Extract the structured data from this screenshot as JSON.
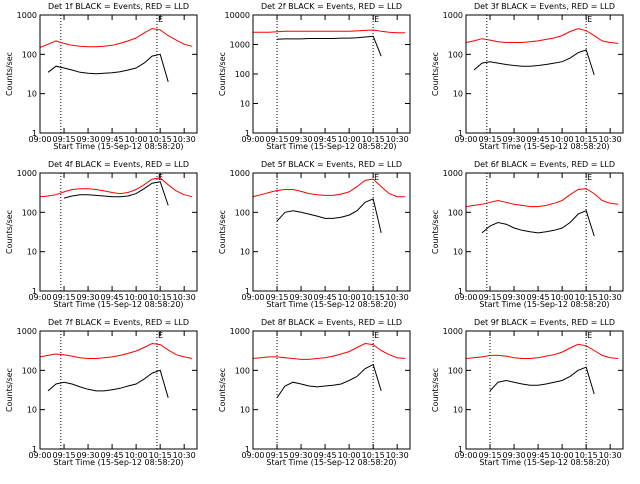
{
  "chart_data": [
    {
      "type": "line",
      "title": "Det 1f BLACK = Events, RED = LLD",
      "xlabel": "Start Time (15-Sep-12 08:58:20)",
      "ylabel": "Counts/sec",
      "log_y": true,
      "x": [
        "09:00",
        "09:05",
        "09:10",
        "09:15",
        "09:20",
        "09:25",
        "09:30",
        "09:35",
        "09:40",
        "09:45",
        "09:50",
        "09:55",
        "10:00",
        "10:05",
        "10:10",
        "10:15",
        "10:20",
        "10:25",
        "10:30",
        "10:35"
      ],
      "xlim": [
        "09:00",
        "10:38"
      ],
      "xticks": [
        "09:00",
        "09:15",
        "09:30",
        "09:45",
        "10:00",
        "10:15",
        "10:30"
      ],
      "ylim": [
        1,
        1000
      ],
      "yticks": [
        1,
        10,
        100,
        1000
      ],
      "events": [
        {
          "x": "09:13"
        },
        {
          "x": "10:13",
          "label": "E"
        }
      ],
      "series": [
        {
          "color": "#000000",
          "values": [
            null,
            35,
            50,
            45,
            40,
            35,
            33,
            32,
            33,
            34,
            36,
            40,
            45,
            60,
            90,
            100,
            20,
            null,
            null,
            null
          ]
        },
        {
          "color": "#ff0000",
          "values": [
            150,
            180,
            220,
            190,
            170,
            160,
            155,
            155,
            160,
            170,
            190,
            220,
            260,
            350,
            450,
            420,
            300,
            230,
            180,
            160
          ]
        }
      ]
    },
    {
      "type": "line",
      "title": "Det 2f BLACK = Events, RED = LLD",
      "xlabel": "Start Time (15-Sep-12 08:58:20)",
      "ylabel": "Counts/sec",
      "log_y": true,
      "x": [
        "09:00",
        "09:05",
        "09:10",
        "09:15",
        "09:20",
        "09:25",
        "09:30",
        "09:35",
        "09:40",
        "09:45",
        "09:50",
        "09:55",
        "10:00",
        "10:05",
        "10:10",
        "10:15",
        "10:20",
        "10:25",
        "10:30",
        "10:35"
      ],
      "xlim": [
        "09:00",
        "10:38"
      ],
      "xticks": [
        "09:00",
        "09:15",
        "09:30",
        "09:45",
        "10:00",
        "10:15",
        "10:30"
      ],
      "ylim": [
        1,
        10000
      ],
      "yticks": [
        1,
        10,
        100,
        1000,
        10000
      ],
      "events": [
        {
          "x": "09:15"
        },
        {
          "x": "10:15",
          "label": "E"
        }
      ],
      "series": [
        {
          "color": "#000000",
          "values": [
            null,
            null,
            null,
            1500,
            1550,
            1550,
            1550,
            1600,
            1600,
            1600,
            1600,
            1650,
            1650,
            1700,
            1800,
            1900,
            400,
            null,
            null,
            null
          ]
        },
        {
          "color": "#ff0000",
          "values": [
            2600,
            2600,
            2600,
            2700,
            2800,
            2800,
            2800,
            2800,
            2800,
            2800,
            2800,
            2800,
            2800,
            2900,
            3000,
            3100,
            2800,
            2600,
            2500,
            2500
          ]
        }
      ]
    },
    {
      "type": "line",
      "title": "Det 3f BLACK = Events, RED = LLD",
      "xlabel": "Start Time (15-Sep-12 08:58:20)",
      "ylabel": "Counts/sec",
      "log_y": true,
      "x": [
        "09:00",
        "09:05",
        "09:10",
        "09:15",
        "09:20",
        "09:25",
        "09:30",
        "09:35",
        "09:40",
        "09:45",
        "09:50",
        "09:55",
        "10:00",
        "10:05",
        "10:10",
        "10:15",
        "10:20",
        "10:25",
        "10:30",
        "10:35"
      ],
      "xlim": [
        "09:00",
        "10:38"
      ],
      "xticks": [
        "09:00",
        "09:15",
        "09:30",
        "09:45",
        "10:00",
        "10:15",
        "10:30"
      ],
      "ylim": [
        1,
        1000
      ],
      "yticks": [
        1,
        10,
        100,
        1000
      ],
      "events": [
        {
          "x": "09:13"
        },
        {
          "x": "10:15",
          "label": "E"
        }
      ],
      "series": [
        {
          "color": "#000000",
          "values": [
            null,
            40,
            60,
            65,
            60,
            55,
            52,
            50,
            50,
            52,
            55,
            60,
            65,
            80,
            110,
            130,
            30,
            null,
            null,
            null
          ]
        },
        {
          "color": "#ff0000",
          "values": [
            200,
            220,
            250,
            230,
            210,
            200,
            200,
            200,
            210,
            220,
            240,
            260,
            300,
            380,
            450,
            400,
            300,
            220,
            200,
            190
          ]
        }
      ]
    },
    {
      "type": "line",
      "title": "Det 4f BLACK = Events, RED = LLD",
      "xlabel": "Start Time (15-Sep-12 08:58:20)",
      "ylabel": "Counts/sec",
      "log_y": true,
      "x": [
        "09:00",
        "09:05",
        "09:10",
        "09:15",
        "09:20",
        "09:25",
        "09:30",
        "09:35",
        "09:40",
        "09:45",
        "09:50",
        "09:55",
        "10:00",
        "10:05",
        "10:10",
        "10:15",
        "10:20",
        "10:25",
        "10:30",
        "10:35"
      ],
      "xlim": [
        "09:00",
        "10:38"
      ],
      "xticks": [
        "09:00",
        "09:15",
        "09:30",
        "09:45",
        "10:00",
        "10:15",
        "10:30"
      ],
      "ylim": [
        1,
        1000
      ],
      "yticks": [
        1,
        10,
        100,
        1000
      ],
      "events": [
        {
          "x": "09:13"
        },
        {
          "x": "10:13",
          "label": "E"
        }
      ],
      "series": [
        {
          "color": "#000000",
          "values": [
            null,
            null,
            null,
            230,
            260,
            280,
            280,
            270,
            260,
            250,
            250,
            260,
            300,
            400,
            550,
            600,
            150,
            null,
            null,
            null
          ]
        },
        {
          "color": "#ff0000",
          "values": [
            250,
            260,
            280,
            330,
            380,
            400,
            400,
            380,
            350,
            320,
            300,
            320,
            380,
            500,
            700,
            750,
            500,
            350,
            280,
            250
          ]
        }
      ]
    },
    {
      "type": "line",
      "title": "Det 5f BLACK = Events, RED = LLD",
      "xlabel": "Start Time (15-Sep-12 08:58:20)",
      "ylabel": "Counts/sec",
      "log_y": true,
      "x": [
        "09:00",
        "09:05",
        "09:10",
        "09:15",
        "09:20",
        "09:25",
        "09:30",
        "09:35",
        "09:40",
        "09:45",
        "09:50",
        "09:55",
        "10:00",
        "10:05",
        "10:10",
        "10:15",
        "10:20",
        "10:25",
        "10:30",
        "10:35"
      ],
      "xlim": [
        "09:00",
        "10:38"
      ],
      "xticks": [
        "09:00",
        "09:15",
        "09:30",
        "09:45",
        "10:00",
        "10:15",
        "10:30"
      ],
      "ylim": [
        1,
        1000
      ],
      "yticks": [
        1,
        10,
        100,
        1000
      ],
      "events": [
        {
          "x": "09:15"
        },
        {
          "x": "10:15",
          "label": "E"
        }
      ],
      "series": [
        {
          "color": "#000000",
          "values": [
            null,
            null,
            null,
            60,
            100,
            110,
            100,
            90,
            80,
            70,
            70,
            75,
            85,
            110,
            180,
            220,
            30,
            null,
            null,
            null
          ]
        },
        {
          "color": "#ff0000",
          "values": [
            250,
            280,
            320,
            360,
            380,
            380,
            340,
            300,
            280,
            270,
            270,
            290,
            330,
            450,
            650,
            700,
            450,
            300,
            250,
            250
          ]
        }
      ]
    },
    {
      "type": "line",
      "title": "Det 6f BLACK = Events, RED = LLD",
      "xlabel": "Start Time (15-Sep-12 08:58:20)",
      "ylabel": "Counts/sec",
      "log_y": true,
      "x": [
        "09:00",
        "09:05",
        "09:10",
        "09:15",
        "09:20",
        "09:25",
        "09:30",
        "09:35",
        "09:40",
        "09:45",
        "09:50",
        "09:55",
        "10:00",
        "10:05",
        "10:10",
        "10:15",
        "10:20",
        "10:25",
        "10:30",
        "10:35"
      ],
      "xlim": [
        "09:00",
        "10:38"
      ],
      "xticks": [
        "09:00",
        "09:15",
        "09:30",
        "09:45",
        "10:00",
        "10:15",
        "10:30"
      ],
      "ylim": [
        1,
        1000
      ],
      "yticks": [
        1,
        10,
        100,
        1000
      ],
      "events": [
        {
          "x": "09:13"
        },
        {
          "x": "10:15",
          "label": "E"
        }
      ],
      "series": [
        {
          "color": "#000000",
          "values": [
            null,
            null,
            30,
            45,
            55,
            50,
            40,
            35,
            32,
            30,
            32,
            35,
            40,
            55,
            90,
            110,
            25,
            null,
            null,
            null
          ]
        },
        {
          "color": "#ff0000",
          "values": [
            140,
            150,
            160,
            180,
            200,
            180,
            160,
            150,
            140,
            140,
            150,
            170,
            200,
            280,
            380,
            400,
            300,
            200,
            170,
            160
          ]
        }
      ]
    },
    {
      "type": "line",
      "title": "Det 7f BLACK = Events, RED = LLD",
      "xlabel": "Start Time (15-Sep-12 08:58:20)",
      "ylabel": "Counts/sec",
      "log_y": true,
      "x": [
        "09:00",
        "09:05",
        "09:10",
        "09:15",
        "09:20",
        "09:25",
        "09:30",
        "09:35",
        "09:40",
        "09:45",
        "09:50",
        "09:55",
        "10:00",
        "10:05",
        "10:10",
        "10:15",
        "10:20",
        "10:25",
        "10:30",
        "10:35"
      ],
      "xlim": [
        "09:00",
        "10:38"
      ],
      "xticks": [
        "09:00",
        "09:15",
        "09:30",
        "09:45",
        "10:00",
        "10:15",
        "10:30"
      ],
      "ylim": [
        1,
        1000
      ],
      "yticks": [
        1,
        10,
        100,
        1000
      ],
      "events": [
        {
          "x": "09:13"
        },
        {
          "x": "10:13",
          "label": "E"
        }
      ],
      "series": [
        {
          "color": "#000000",
          "values": [
            null,
            30,
            45,
            50,
            45,
            38,
            33,
            30,
            30,
            32,
            35,
            40,
            45,
            60,
            85,
            100,
            20,
            null,
            null,
            null
          ]
        },
        {
          "color": "#ff0000",
          "values": [
            220,
            240,
            260,
            250,
            230,
            210,
            200,
            200,
            210,
            220,
            240,
            270,
            310,
            380,
            480,
            450,
            330,
            250,
            220,
            200
          ]
        }
      ]
    },
    {
      "type": "line",
      "title": "Det 8f BLACK = Events, RED = LLD",
      "xlabel": "Start Time (15-Sep-12 08:58:20)",
      "ylabel": "Counts/sec",
      "log_y": true,
      "x": [
        "09:00",
        "09:05",
        "09:10",
        "09:15",
        "09:20",
        "09:25",
        "09:30",
        "09:35",
        "09:40",
        "09:45",
        "09:50",
        "09:55",
        "10:00",
        "10:05",
        "10:10",
        "10:15",
        "10:20",
        "10:25",
        "10:30",
        "10:35"
      ],
      "xlim": [
        "09:00",
        "10:38"
      ],
      "xticks": [
        "09:00",
        "09:15",
        "09:30",
        "09:45",
        "10:00",
        "10:15",
        "10:30"
      ],
      "ylim": [
        1,
        1000
      ],
      "yticks": [
        1,
        10,
        100,
        1000
      ],
      "events": [
        {
          "x": "09:15"
        },
        {
          "x": "10:15",
          "label": "E"
        }
      ],
      "series": [
        {
          "color": "#000000",
          "values": [
            null,
            null,
            null,
            20,
            40,
            50,
            45,
            40,
            38,
            40,
            42,
            45,
            55,
            70,
            110,
            140,
            30,
            null,
            null,
            null
          ]
        },
        {
          "color": "#ff0000",
          "values": [
            200,
            210,
            220,
            220,
            210,
            200,
            190,
            190,
            200,
            210,
            230,
            260,
            300,
            380,
            480,
            450,
            320,
            250,
            210,
            200
          ]
        }
      ]
    },
    {
      "type": "line",
      "title": "Det 9f BLACK = Events, RED = LLD",
      "xlabel": "Start Time (15-Sep-12 08:58:20)",
      "ylabel": "Counts/sec",
      "log_y": true,
      "x": [
        "09:00",
        "09:05",
        "09:10",
        "09:15",
        "09:20",
        "09:25",
        "09:30",
        "09:35",
        "09:40",
        "09:45",
        "09:50",
        "09:55",
        "10:00",
        "10:05",
        "10:10",
        "10:15",
        "10:20",
        "10:25",
        "10:30",
        "10:35"
      ],
      "xlim": [
        "09:00",
        "10:38"
      ],
      "xticks": [
        "09:00",
        "09:15",
        "09:30",
        "09:45",
        "10:00",
        "10:15",
        "10:30"
      ],
      "ylim": [
        1,
        1000
      ],
      "yticks": [
        1,
        10,
        100,
        1000
      ],
      "events": [
        {
          "x": "09:15"
        },
        {
          "x": "10:15",
          "label": "E"
        }
      ],
      "series": [
        {
          "color": "#000000",
          "values": [
            null,
            null,
            null,
            30,
            50,
            55,
            50,
            45,
            42,
            42,
            45,
            50,
            55,
            70,
            100,
            120,
            25,
            null,
            null,
            null
          ]
        },
        {
          "color": "#ff0000",
          "values": [
            200,
            210,
            220,
            240,
            240,
            230,
            210,
            200,
            200,
            210,
            230,
            250,
            290,
            370,
            460,
            420,
            320,
            240,
            210,
            200
          ]
        }
      ]
    }
  ]
}
